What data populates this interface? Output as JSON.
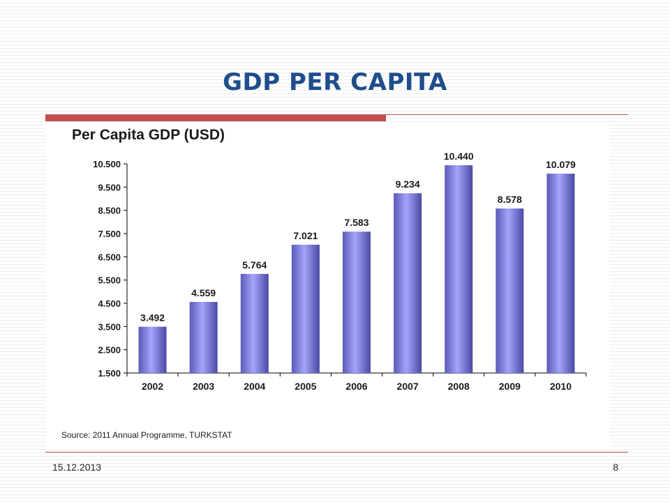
{
  "slide": {
    "title": "GDP PER CAPITA",
    "date": "15.12.2013",
    "page_number": "8"
  },
  "colors": {
    "accent_rule": "#c0504d",
    "title": "#1f4e8c",
    "bar_light": "#9c9cf5",
    "bar_dark": "#4a4aa6"
  },
  "chart_data": {
    "type": "bar",
    "title": "Per Capita GDP (USD)",
    "source": "Source: 2011 Annual Programme, TURKSTAT",
    "categories": [
      "2002",
      "2003",
      "2004",
      "2005",
      "2006",
      "2007",
      "2008",
      "2009",
      "2010"
    ],
    "values": [
      3492,
      4559,
      5764,
      7021,
      7583,
      9234,
      10440,
      8578,
      10079
    ],
    "value_labels": [
      "3.492",
      "4.559",
      "5.764",
      "7.021",
      "7.583",
      "9.234",
      "10.440",
      "8.578",
      "10.079"
    ],
    "y_ticks": [
      1500,
      2500,
      3500,
      4500,
      5500,
      6500,
      7500,
      8500,
      9500,
      10500
    ],
    "y_tick_labels": [
      "1.500",
      "2.500",
      "3.500",
      "4.500",
      "5.500",
      "6.500",
      "7.500",
      "8.500",
      "9.500",
      "10.500"
    ],
    "ylim": [
      1500,
      10500
    ],
    "xlabel": "",
    "ylabel": "",
    "grid": false,
    "legend": "none"
  }
}
